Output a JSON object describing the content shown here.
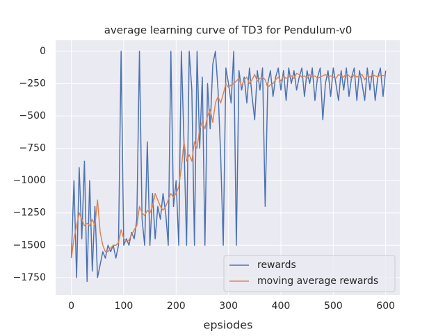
{
  "chart_data": {
    "type": "line",
    "title": "average learning curve of TD3 for Pendulum-v0",
    "x_label": "epsiodes",
    "x": [
      0,
      5,
      10,
      15,
      20,
      25,
      30,
      35,
      40,
      45,
      50,
      55,
      60,
      65,
      70,
      75,
      80,
      85,
      90,
      95,
      100,
      105,
      110,
      115,
      120,
      125,
      130,
      135,
      140,
      145,
      150,
      155,
      160,
      165,
      170,
      175,
      180,
      185,
      190,
      195,
      200,
      205,
      210,
      215,
      220,
      225,
      230,
      235,
      240,
      245,
      250,
      255,
      260,
      265,
      270,
      275,
      280,
      285,
      290,
      295,
      300,
      305,
      310,
      315,
      320,
      325,
      330,
      335,
      340,
      345,
      350,
      355,
      360,
      365,
      370,
      375,
      380,
      385,
      390,
      395,
      400,
      405,
      410,
      415,
      420,
      425,
      430,
      435,
      440,
      445,
      450,
      455,
      460,
      465,
      470,
      475,
      480,
      485,
      490,
      495,
      500,
      505,
      510,
      515,
      520,
      525,
      530,
      535,
      540,
      545,
      550,
      555,
      560,
      565,
      570,
      575,
      580,
      585,
      590,
      595,
      600
    ],
    "series": [
      {
        "name": "rewards",
        "color": "#4c72b0",
        "values": [
          -1600,
          -1000,
          -1750,
          -900,
          -1450,
          -850,
          -1780,
          -1000,
          -1700,
          -1200,
          -1750,
          -1650,
          -1550,
          -1600,
          -1500,
          -1550,
          -1500,
          -1600,
          -1500,
          0,
          -1500,
          -1450,
          -1500,
          -1400,
          -1450,
          -1300,
          0,
          -1300,
          -1500,
          -700,
          -1500,
          -1100,
          -1450,
          -1200,
          -1300,
          -1100,
          -1250,
          -1500,
          0,
          -1200,
          -1000,
          -1500,
          0,
          -700,
          -1500,
          0,
          -300,
          -1500,
          0,
          -750,
          -200,
          -1500,
          -250,
          -600,
          -100,
          0,
          -300,
          -800,
          -1500,
          -130,
          -250,
          -400,
          0,
          -1500,
          -150,
          -300,
          -200,
          -400,
          -130,
          -350,
          -530,
          -150,
          -300,
          -130,
          -1200,
          -250,
          -150,
          -350,
          -200,
          -130,
          -300,
          -150,
          -380,
          -130,
          -250,
          -150,
          -300,
          -200,
          -130,
          -350,
          -150,
          -250,
          -130,
          -380,
          -200,
          -130,
          -530,
          -250,
          -150,
          -350,
          -130,
          -250,
          -380,
          -150,
          -300,
          -130,
          -350,
          -200,
          -130,
          -380,
          -150,
          -250,
          -380,
          -130,
          -300,
          -150,
          -380,
          -200,
          -130,
          -350,
          -150
        ]
      },
      {
        "name": "moving average rewards",
        "color": "#dd8452",
        "values": [
          -1600,
          -1450,
          -1350,
          -1250,
          -1300,
          -1350,
          -1330,
          -1350,
          -1300,
          -1350,
          -1150,
          -1400,
          -1500,
          -1550,
          -1550,
          -1520,
          -1500,
          -1500,
          -1480,
          -1380,
          -1450,
          -1470,
          -1460,
          -1420,
          -1380,
          -1350,
          -1200,
          -1250,
          -1270,
          -1230,
          -1250,
          -1200,
          -1100,
          -1150,
          -1200,
          -1230,
          -1200,
          -1150,
          -1100,
          -1130,
          -1100,
          -1050,
          -900,
          -700,
          -850,
          -800,
          -850,
          -700,
          -750,
          -600,
          -550,
          -600,
          -500,
          -450,
          -550,
          -400,
          -350,
          -400,
          -330,
          -250,
          -280,
          -260,
          -250,
          -230,
          -210,
          -270,
          -220,
          -200,
          -250,
          -220,
          -180,
          -230,
          -210,
          -200,
          -220,
          -280,
          -260,
          -250,
          -220,
          -200,
          -230,
          -190,
          -210,
          -200,
          -190,
          -210,
          -170,
          -180,
          -200,
          -190,
          -210,
          -180,
          -200,
          -190,
          -210,
          -200,
          -190,
          -180,
          -200,
          -190,
          -200,
          -210,
          -180,
          -190,
          -200,
          -170,
          -190,
          -210,
          -180,
          -200,
          -190,
          -180,
          -220,
          -190,
          -200,
          -180,
          -190,
          -200,
          -180,
          -190,
          -180
        ]
      }
    ],
    "xlim": [
      -30,
      627
    ],
    "ylim": [
      -1885,
      85
    ],
    "xticks": [
      0,
      100,
      200,
      300,
      400,
      500,
      600
    ],
    "yticks": [
      0,
      {
        "value": -250,
        "label": "−250"
      },
      {
        "value": -500,
        "label": "−500"
      },
      {
        "value": -750,
        "label": "−750"
      },
      {
        "value": -1000,
        "label": "−1000"
      },
      {
        "value": -1250,
        "label": "−1250"
      },
      {
        "value": -1500,
        "label": "−1500"
      },
      {
        "value": -1750,
        "label": "−1750"
      }
    ],
    "grid": true,
    "legend": "lower right"
  }
}
